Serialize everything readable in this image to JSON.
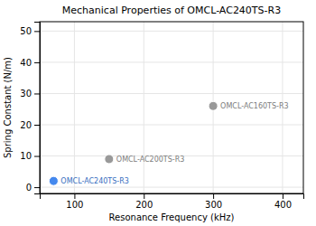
{
  "chart_data": {
    "type": "scatter",
    "title": "Mechanical Properties of OMCL-AC240TS-R3",
    "xlabel": "Resonance Frequency (kHz)",
    "ylabel": "Spring Constant (N/m)",
    "x": [
      70,
      150,
      300
    ],
    "values": [
      2,
      9,
      26
    ],
    "annotations": [
      "OMCL-AC240TS-R3",
      "OMCL-AC200TS-R3",
      "OMCL-AC160TS-R3"
    ],
    "colors": [
      "#4488ee",
      "#999999",
      "#999999"
    ],
    "xlim": [
      50,
      430
    ],
    "ylim": [
      -2,
      53
    ],
    "xticks": [
      100,
      200,
      300,
      400
    ],
    "yticks": [
      0,
      10,
      20,
      30,
      40,
      50
    ],
    "grid": true
  }
}
